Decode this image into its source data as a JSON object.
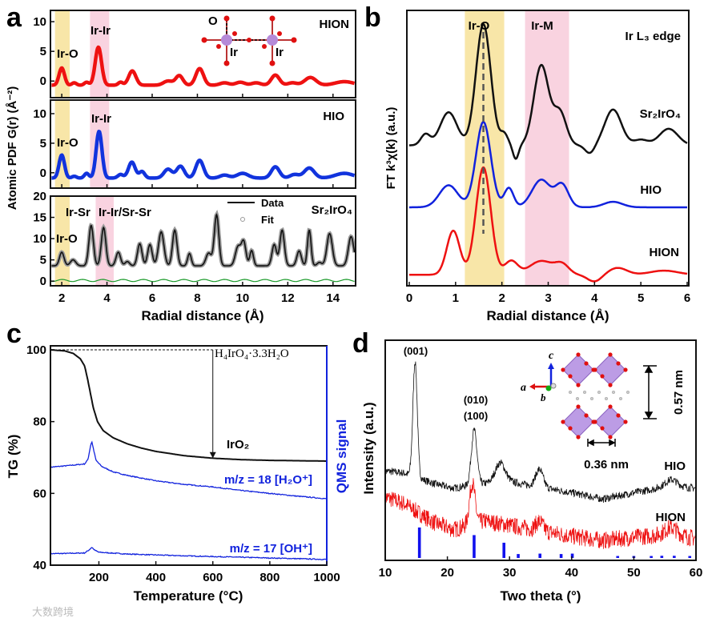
{
  "panel_letters": [
    "a",
    "b",
    "c",
    "d"
  ],
  "watermark": "大数跨境",
  "chart_data": [
    {
      "panel": "a",
      "type": "line",
      "xlabel": "Radial distance (Å)",
      "ylabel": "Atomic PDF G(r) (Å⁻²)",
      "xlim": [
        1.5,
        15
      ],
      "xticks": [
        2,
        4,
        6,
        8,
        10,
        12,
        14
      ],
      "shaded": [
        {
          "label": "Ir-O",
          "range": [
            1.7,
            2.35
          ],
          "color": "#f8e6a8"
        },
        {
          "label": "Ir-Ir",
          "range": [
            3.25,
            4.1
          ],
          "color": "#f9d3e0"
        }
      ],
      "subplots": [
        {
          "name": "HION",
          "color": "#ee1111",
          "ylim": [
            -2.8,
            11.9
          ],
          "yticks": [
            0,
            5,
            10
          ],
          "baseline": -0.7,
          "peaks": [
            [
              2.0,
              2.9,
              0.12
            ],
            [
              2.55,
              0.4,
              0.1
            ],
            [
              3.1,
              0.5,
              0.1
            ],
            [
              3.62,
              6.4,
              0.14
            ],
            [
              4.6,
              0.5,
              0.1
            ],
            [
              5.12,
              2.4,
              0.16
            ],
            [
              6.7,
              0.7,
              0.2
            ],
            [
              7.2,
              1.6,
              0.16
            ],
            [
              8.1,
              2.8,
              0.17
            ],
            [
              9.2,
              0.4,
              0.2
            ],
            [
              9.9,
              0.5,
              0.2
            ],
            [
              10.6,
              0.4,
              0.2
            ],
            [
              11.45,
              1.7,
              0.18
            ],
            [
              12.2,
              0.4,
              0.2
            ],
            [
              13.0,
              1.3,
              0.25
            ],
            [
              14.5,
              0.6,
              0.4
            ]
          ],
          "annotations": {
            "ir_o": "Ir-O",
            "ir_ir": "Ir-Ir",
            "o": "O",
            "ir1": "Ir",
            "ir2": "Ir"
          }
        },
        {
          "name": "HIO",
          "color": "#1133dd",
          "ylim": [
            -2.6,
            12.3
          ],
          "yticks": [
            0,
            5,
            10
          ],
          "baseline": -0.9,
          "peaks": [
            [
              2.0,
              3.9,
              0.12
            ],
            [
              2.55,
              0.3,
              0.1
            ],
            [
              3.1,
              0.8,
              0.1
            ],
            [
              3.65,
              7.9,
              0.13
            ],
            [
              4.6,
              0.6,
              0.12
            ],
            [
              5.1,
              2.7,
              0.15
            ],
            [
              5.55,
              1.1,
              0.12
            ],
            [
              6.7,
              1.5,
              0.18
            ],
            [
              7.25,
              2.0,
              0.17
            ],
            [
              8.1,
              3.0,
              0.17
            ],
            [
              9.2,
              0.5,
              0.2
            ],
            [
              10.0,
              0.8,
              0.25
            ],
            [
              11.45,
              1.9,
              0.18
            ],
            [
              12.3,
              0.6,
              0.2
            ],
            [
              12.95,
              1.7,
              0.22
            ],
            [
              14.5,
              0.8,
              0.4
            ]
          ],
          "annotations": {
            "ir_o": "Ir-O",
            "ir_ir": "Ir-Ir"
          }
        },
        {
          "name": "Sr₂IrO₄",
          "color": "#111111",
          "fit_color": "#9a9a9a",
          "diff_color": "#1a9a2a",
          "ylim": [
            -1.1,
            20
          ],
          "yticks": [
            0,
            5,
            10,
            15,
            20
          ],
          "baseline": 3.6,
          "peaks": [
            [
              2.0,
              3.2,
              0.1
            ],
            [
              2.5,
              1.4,
              0.12
            ],
            [
              3.3,
              9.5,
              0.1
            ],
            [
              3.85,
              9.0,
              0.1
            ],
            [
              4.5,
              3.2,
              0.1
            ],
            [
              4.9,
              1.0,
              0.1
            ],
            [
              5.45,
              5.2,
              0.1
            ],
            [
              5.9,
              5.0,
              0.1
            ],
            [
              6.4,
              8.0,
              0.12
            ],
            [
              7.0,
              8.4,
              0.1
            ],
            [
              7.65,
              2.9,
              0.08
            ],
            [
              8.5,
              3.0,
              0.12
            ],
            [
              8.85,
              12.0,
              0.1
            ],
            [
              9.8,
              4.5,
              0.12
            ],
            [
              10.05,
              5.5,
              0.1
            ],
            [
              10.4,
              3.6,
              0.08
            ],
            [
              11.4,
              5.0,
              0.1
            ],
            [
              11.75,
              8.4,
              0.1
            ],
            [
              12.5,
              3.5,
              0.1
            ],
            [
              12.95,
              8.4,
              0.08
            ],
            [
              13.4,
              0.8,
              0.1
            ],
            [
              13.85,
              7.6,
              0.12
            ],
            [
              14.8,
              6.9,
              0.12
            ]
          ],
          "annotations": {
            "ir_sr": "Ir-Sr",
            "ir_ir_sr_sr": "Ir-Ir/Sr-Sr",
            "ir_o": "Ir-O"
          },
          "legend": {
            "data": "Data",
            "fit": "Fit"
          }
        }
      ]
    },
    {
      "panel": "b",
      "type": "line",
      "xlabel": "Radial distance (Å)",
      "ylabel": "FT k³χ(k) (a.u.)",
      "xlim": [
        0,
        6
      ],
      "ylim": [
        0,
        10
      ],
      "xticks": [
        0,
        1,
        2,
        3,
        4,
        5,
        6
      ],
      "title": "Ir L₃ edge",
      "shaded": [
        {
          "label": "Ir-O",
          "range": [
            1.2,
            2.05
          ],
          "color": "#f8e6a8"
        },
        {
          "label": "Ir-M",
          "range": [
            2.5,
            3.45
          ],
          "color": "#f9d3e0"
        }
      ],
      "dashed_x": 1.6,
      "series": [
        {
          "name": "Sr₂IrO₄",
          "color": "#111111",
          "baseline": 5.1,
          "peaks": [
            [
              0.35,
              0.4,
              0.1
            ],
            [
              0.85,
              1.2,
              0.18
            ],
            [
              1.6,
              4.4,
              0.16
            ],
            [
              2.05,
              0.4,
              0.08
            ],
            [
              2.3,
              -0.5,
              0.06
            ],
            [
              2.85,
              2.9,
              0.16
            ],
            [
              3.25,
              1.2,
              0.14
            ],
            [
              3.9,
              -0.3,
              0.1
            ],
            [
              4.4,
              1.3,
              0.18
            ],
            [
              5.0,
              0.2,
              0.15
            ],
            [
              5.6,
              0.6,
              0.2
            ]
          ]
        },
        {
          "name": "HIO",
          "color": "#1122dd",
          "baseline": 2.85,
          "peaks": [
            [
              0.85,
              0.8,
              0.2
            ],
            [
              1.6,
              3.1,
              0.16
            ],
            [
              2.15,
              0.7,
              0.1
            ],
            [
              2.85,
              1.0,
              0.2
            ],
            [
              3.3,
              0.8,
              0.14
            ],
            [
              4.4,
              0.2,
              0.2
            ]
          ]
        },
        {
          "name": "HION",
          "color": "#ee1111",
          "baseline": 0.4,
          "peaks": [
            [
              0.95,
              1.6,
              0.14
            ],
            [
              1.6,
              3.9,
              0.16
            ],
            [
              2.2,
              0.5,
              0.14
            ],
            [
              2.85,
              0.5,
              0.25
            ],
            [
              3.3,
              0.35,
              0.15
            ],
            [
              4.0,
              -0.25,
              0.15
            ],
            [
              4.5,
              0.25,
              0.2
            ],
            [
              5.5,
              0.15,
              0.3
            ]
          ]
        }
      ]
    },
    {
      "panel": "c",
      "type": "line",
      "xlabel": "Temperature (°C)",
      "ylabel": "TG (%)",
      "y2label": "QMS signal",
      "xlim": [
        30,
        1000
      ],
      "ylim": [
        40,
        100
      ],
      "xticks": [
        200,
        400,
        600,
        800,
        1000
      ],
      "yticks": [
        40,
        60,
        80,
        100
      ],
      "annotations": {
        "precursor": "H₄IrO₄·3.3H₂O",
        "product": "IrO₂",
        "h2o": "m/z = 18 [H₂O⁺]",
        "oh": "m/z = 17 [OH⁺]"
      },
      "series": [
        {
          "name": "TG",
          "color": "#111111",
          "points": [
            [
              30,
              100
            ],
            [
              80,
              99.7
            ],
            [
              110,
              99
            ],
            [
              135,
              97.5
            ],
            [
              150,
              95.5
            ],
            [
              160,
              92
            ],
            [
              170,
              88
            ],
            [
              180,
              84
            ],
            [
              195,
              80
            ],
            [
              215,
              77.5
            ],
            [
              250,
              75.5
            ],
            [
              300,
              73.8
            ],
            [
              350,
              72.6
            ],
            [
              400,
              71.7
            ],
            [
              500,
              70.5
            ],
            [
              600,
              69.8
            ],
            [
              700,
              69.4
            ],
            [
              800,
              69.2
            ],
            [
              1000,
              69
            ]
          ]
        },
        {
          "name": "m/z = 18",
          "color": "#1122dd",
          "points": [
            [
              30,
              67.3
            ],
            [
              100,
              67.8
            ],
            [
              150,
              68.2
            ],
            [
              162,
              69.5
            ],
            [
              170,
              73
            ],
            [
              175,
              74.5
            ],
            [
              182,
              72
            ],
            [
              190,
              69.2
            ],
            [
              210,
              67.5
            ],
            [
              250,
              66
            ],
            [
              300,
              65
            ],
            [
              400,
              63.5
            ],
            [
              500,
              62.5
            ],
            [
              600,
              61.8
            ],
            [
              700,
              60.8
            ],
            [
              800,
              60
            ],
            [
              900,
              59.2
            ],
            [
              1000,
              58.5
            ]
          ]
        },
        {
          "name": "m/z = 17",
          "color": "#1122dd",
          "points": [
            [
              30,
              43.2
            ],
            [
              100,
              43.3
            ],
            [
              150,
              43.4
            ],
            [
              165,
              44.2
            ],
            [
              175,
              45
            ],
            [
              185,
              44.2
            ],
            [
              200,
              43.6
            ],
            [
              300,
              43.1
            ],
            [
              500,
              42.6
            ],
            [
              700,
              42.2
            ],
            [
              1000,
              41.6
            ]
          ]
        }
      ]
    },
    {
      "panel": "d",
      "type": "line",
      "xlabel": "Two theta (°)",
      "ylabel": "Intensity (a.u.)",
      "xlim": [
        10,
        60
      ],
      "ylim": [
        0,
        10
      ],
      "xticks": [
        10,
        20,
        30,
        40,
        50,
        60
      ],
      "annotations": {
        "p001": "(001)",
        "p010": "(010)",
        "p100": "(100)",
        "dist_c": "0.57 nm",
        "dist_a": "0.36 nm",
        "axis_a": "a",
        "axis_b": "b",
        "axis_c": "c"
      },
      "series": [
        {
          "name": "HIO",
          "color": "#111111",
          "noise": 0.35,
          "base_points": [
            [
              10,
              4.0
            ],
            [
              13,
              3.9
            ],
            [
              18,
              3.4
            ],
            [
              21,
              3.2
            ],
            [
              25,
              3.4
            ],
            [
              30,
              3.5
            ],
            [
              40,
              3.0
            ],
            [
              45,
              2.7
            ],
            [
              50,
              3.0
            ],
            [
              56,
              3.3
            ],
            [
              60,
              3.2
            ]
          ],
          "peaks": [
            [
              14.8,
              5.3,
              0.35
            ],
            [
              24.3,
              2.5,
              0.45
            ],
            [
              28.5,
              0.9,
              0.8
            ],
            [
              34.8,
              0.8,
              0.6
            ],
            [
              56,
              0.3,
              1
            ]
          ]
        },
        {
          "name": "HION",
          "color": "#ee1111",
          "noise": 0.8,
          "base_points": [
            [
              10,
              2.8
            ],
            [
              13,
              2.5
            ],
            [
              18,
              1.6
            ],
            [
              21,
              1.3
            ],
            [
              26,
              1.7
            ],
            [
              30,
              1.5
            ],
            [
              40,
              1.0
            ],
            [
              45,
              0.8
            ],
            [
              50,
              0.95
            ],
            [
              56,
              1.1
            ],
            [
              60,
              0.9
            ]
          ],
          "peaks": [
            [
              24.0,
              1.9,
              0.45
            ],
            [
              34.8,
              0.4,
              0.6
            ],
            [
              56,
              0.3,
              1
            ]
          ]
        },
        {
          "name": "reference",
          "color": "#1111ee",
          "sticks": [
            [
              15.5,
              1.4
            ],
            [
              24.3,
              1.05
            ],
            [
              29.1,
              0.7
            ],
            [
              31.4,
              0.18
            ],
            [
              34.9,
              0.2
            ],
            [
              38.3,
              0.18
            ],
            [
              40.1,
              0.2
            ],
            [
              47.4,
              0.09
            ],
            [
              50,
              0.09
            ],
            [
              52.8,
              0.09
            ],
            [
              54.5,
              0.1
            ],
            [
              56.5,
              0.1
            ],
            [
              59,
              0.09
            ]
          ]
        }
      ]
    }
  ]
}
